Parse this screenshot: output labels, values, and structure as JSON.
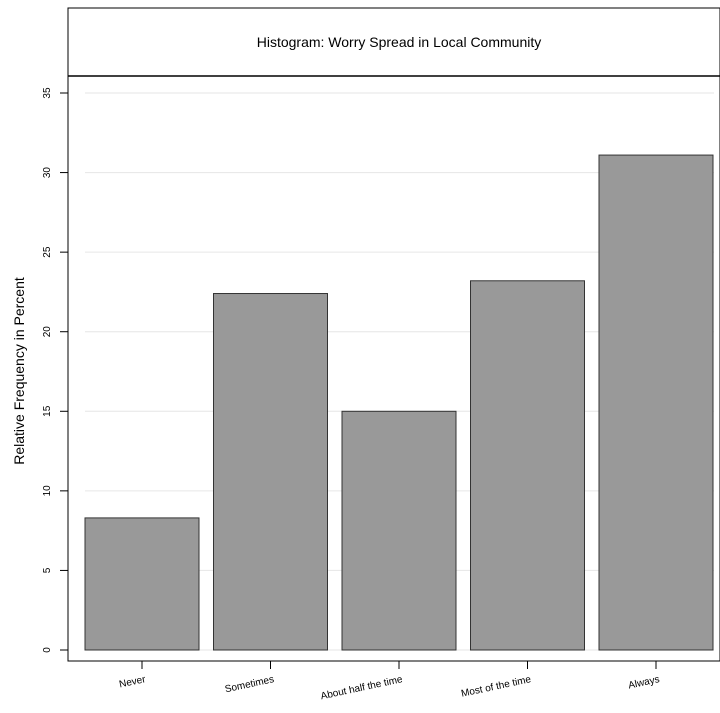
{
  "chart_data": {
    "type": "bar",
    "title": "Histogram: Worry Spread in Local Community",
    "xlabel": "",
    "ylabel": "Relative Frequency in Percent",
    "categories": [
      "Never",
      "Sometimes",
      "About half the time",
      "Most of the time",
      "Always"
    ],
    "values": [
      8.3,
      22.4,
      15.0,
      23.2,
      31.1
    ],
    "ylim": [
      0,
      35
    ],
    "yticks": [
      "0",
      "5",
      "10",
      "15",
      "20",
      "25",
      "30",
      "35"
    ],
    "grid": true,
    "bar_color": "#999999",
    "bar_edge_color": "#333333"
  }
}
